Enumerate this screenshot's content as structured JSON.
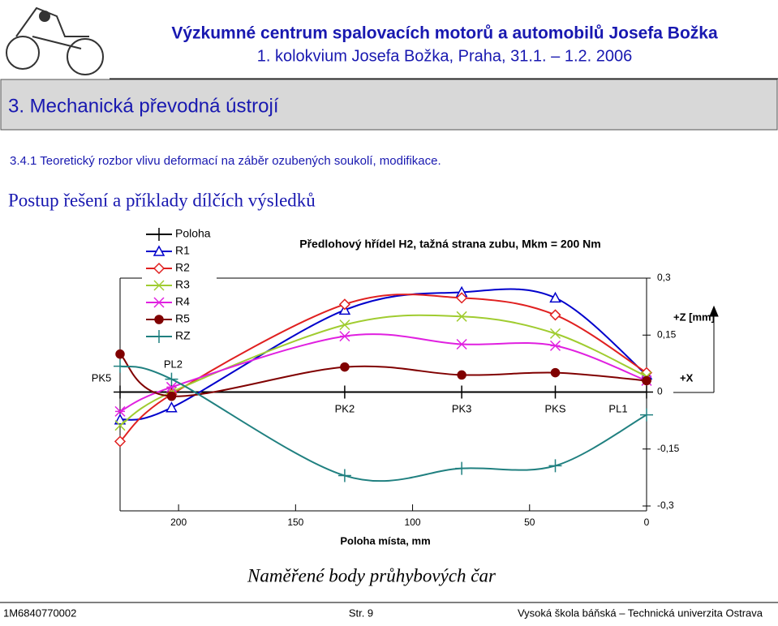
{
  "header": {
    "title": "Výzkumné centrum spalovacích motorů a automobilů Josefa Božka",
    "subtitle": "1. kolokvium Josefa Božka, Praha, 31.1. – 1.2. 2006"
  },
  "section": "3. Mechanická převodná ústrojí",
  "subsection": "3.4.1 Teoretický rozbor vlivu deformací na záběr ozubených soukolí, modifikace.",
  "heading": "Postup řešení a příklady dílčích výsledků",
  "chart_data": {
    "type": "line",
    "title": "Předlohový hřídel H2, tažná strana zubu, Mkm = 200 Nm",
    "x_label": "Poloha místa, mm",
    "annotations": [
      "+Z [mm]",
      "+X"
    ],
    "x": [
      225,
      203,
      129,
      79,
      39,
      0
    ],
    "point_labels": [
      "PK5",
      "PL2",
      "PK2",
      "PK3",
      "PKS",
      "PL1"
    ],
    "xlim": [
      225,
      0
    ],
    "xticks": [
      200,
      150,
      100,
      50,
      0
    ],
    "ylim": [
      -0.3,
      0.3
    ],
    "yticks": [
      {
        "value": 0.3,
        "label": "0,3"
      },
      {
        "value": 0.15,
        "label": "0,15"
      },
      0,
      {
        "value": -0.15,
        "label": "-0,15"
      },
      {
        "value": -0.3,
        "label": "-0,3"
      }
    ],
    "legend": "top-left",
    "series": [
      {
        "name": "Poloha",
        "color": "#000000",
        "marker": "plus",
        "values": [
          0,
          0,
          0,
          0,
          0,
          0
        ]
      },
      {
        "name": "R1",
        "color": "#0000cc",
        "marker": "triangle",
        "values": [
          -0.073,
          -0.041,
          0.216,
          0.263,
          0.248,
          0.045
        ]
      },
      {
        "name": "R2",
        "color": "#e02020",
        "marker": "diamond",
        "values": [
          -0.13,
          -0.006,
          0.231,
          0.248,
          0.203,
          0.051
        ]
      },
      {
        "name": "R3",
        "color": "#a0cc30",
        "marker": "x",
        "values": [
          -0.088,
          0,
          0.177,
          0.199,
          0.154,
          0.041
        ]
      },
      {
        "name": "R4",
        "color": "#e020e0",
        "marker": "star",
        "values": [
          -0.051,
          0.013,
          0.147,
          0.126,
          0.122,
          0.03
        ]
      },
      {
        "name": "R5",
        "color": "#800000",
        "marker": "circle",
        "values": [
          0.1,
          -0.011,
          0.066,
          0.045,
          0.051,
          0.03
        ]
      },
      {
        "name": "RZ",
        "color": "#208080",
        "marker": "plus",
        "values": [
          0.068,
          0.034,
          -0.22,
          -0.201,
          -0.194,
          -0.06
        ]
      }
    ]
  },
  "caption": "Naměřené body průhybových čar",
  "footer": {
    "left": "1M6840770002",
    "center": "Str. 9",
    "right": "Vysoká škola báňská – Technická univerzita Ostrava"
  }
}
